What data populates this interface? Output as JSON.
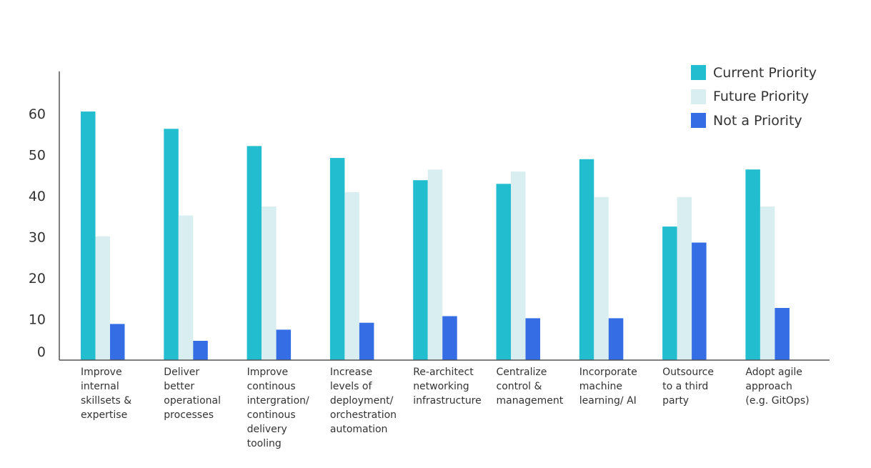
{
  "chart_data": {
    "type": "bar",
    "categories": [
      "Improve internal skillsets & expertise",
      "Deliver better operational processes",
      "Improve continous intergration/ continous delivery tooling",
      "Increase levels of deployment/ orchestration automation",
      "Re-architect networking infrastructure",
      "Centralize control & management",
      "Incorporate machine learning/ AI",
      "Outsource to a third party",
      "Adopt agile approach (e.g. GitOps)"
    ],
    "category_lines": [
      [
        "Improve",
        "internal",
        "skillsets &",
        "expertise"
      ],
      [
        "Deliver",
        "better",
        "operational",
        "processes"
      ],
      [
        "Improve",
        "continous",
        "intergration/",
        "continous",
        "delivery",
        "tooling"
      ],
      [
        "Increase",
        "levels of",
        "deployment/",
        "orchestration",
        "automation"
      ],
      [
        "Re-architect",
        "networking",
        "infrastructure"
      ],
      [
        "Centralize",
        "control &",
        "management"
      ],
      [
        "Incorporate",
        "machine",
        "learning/ AI"
      ],
      [
        "Outsource",
        "to a third",
        "party"
      ],
      [
        "Adopt agile",
        "approach",
        "(e.g. GitOps)"
      ]
    ],
    "series": [
      {
        "name": "Current Priority",
        "color": "#22BDCF",
        "values": [
          60.5,
          56.3,
          52.1,
          49.2,
          43.8,
          42.9,
          48.9,
          32.5,
          46.4
        ]
      },
      {
        "name": "Future Priority",
        "color": "#D9EEF1",
        "values": [
          30.1,
          35.2,
          37.4,
          40.9,
          46.4,
          45.9,
          39.7,
          39.7,
          37.4
        ]
      },
      {
        "name": "Not a Priority",
        "color": "#356DE4",
        "values": [
          8.8,
          4.7,
          7.4,
          9.1,
          10.7,
          10.2,
          10.2,
          28.6,
          12.7
        ]
      }
    ],
    "y_ticks": [
      "0",
      "10",
      "20",
      "30",
      "40",
      "50",
      "60"
    ],
    "ylim": [
      0,
      70
    ],
    "grid": false,
    "legend_position": "top-right"
  }
}
